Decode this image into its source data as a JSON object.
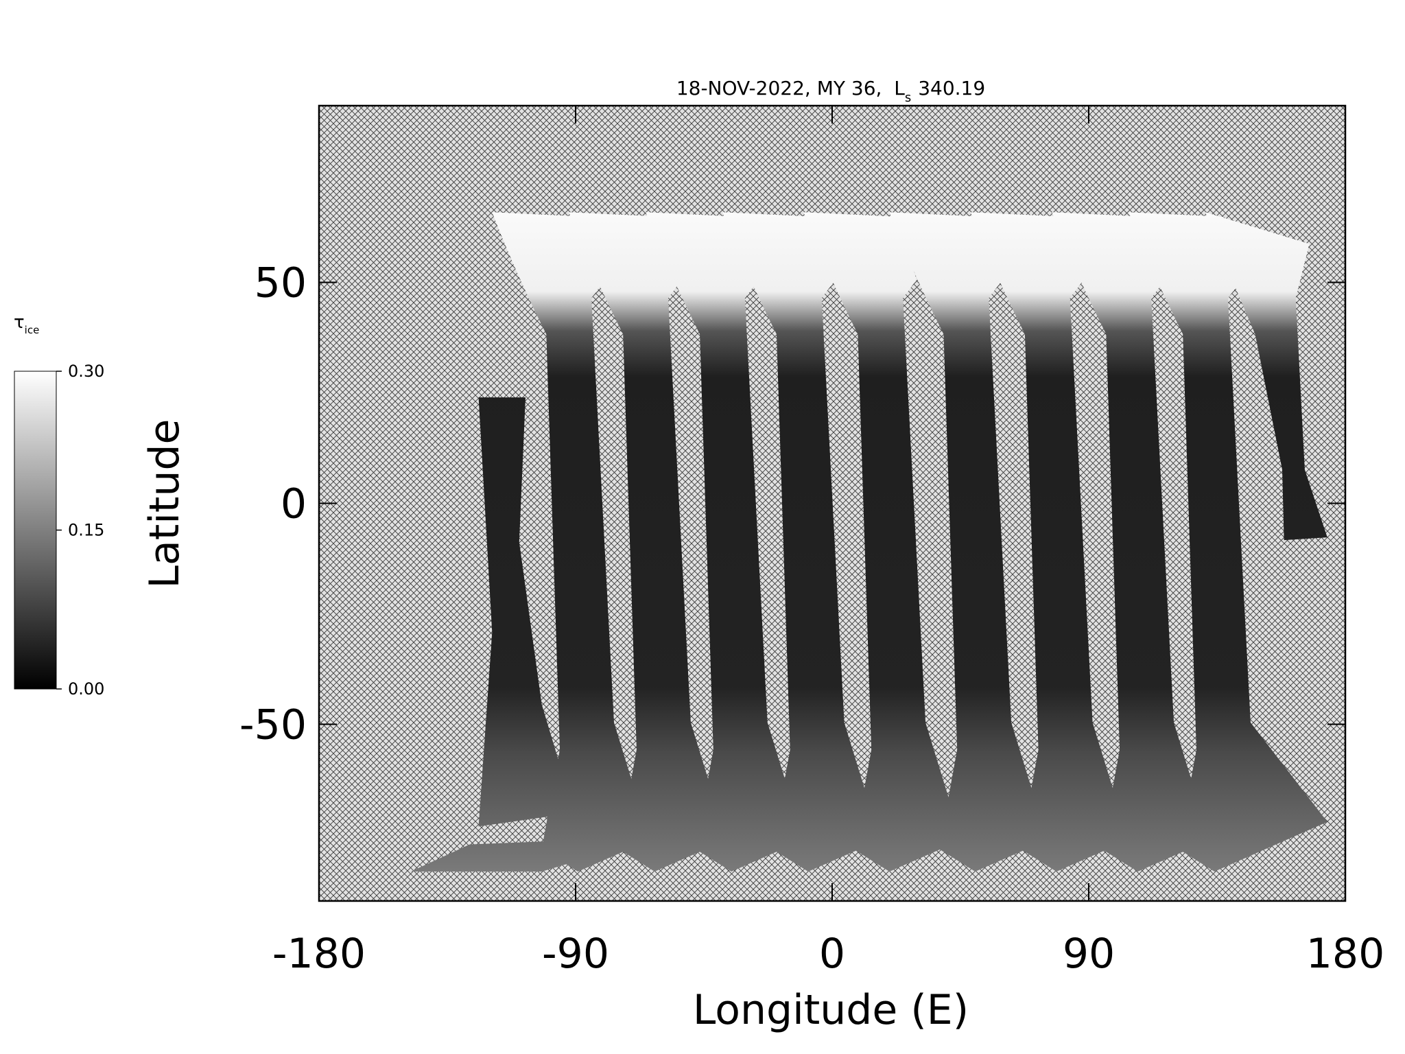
{
  "chart_data": {
    "type": "map",
    "title": {
      "main": "18-NOV-2022, MY 36,  L",
      "subscript": "s",
      "value": "340.19"
    },
    "xlabel": "Longitude (E)",
    "ylabel": "Latitude",
    "xlim": [
      -180,
      180
    ],
    "xticks": [
      -180,
      -90,
      0,
      90,
      180
    ],
    "ylim": [
      -90,
      90
    ],
    "yticks": [
      -50,
      0,
      50
    ],
    "colorbar": {
      "label": "τ",
      "label_subscript": "ice",
      "lim": [
        0,
        0.3
      ],
      "ticks": [
        {
          "value": 0,
          "label": "0.00"
        },
        {
          "value": 0.15,
          "label": "0.15"
        },
        {
          "value": 0.3,
          "label": "0.30"
        }
      ]
    }
  }
}
